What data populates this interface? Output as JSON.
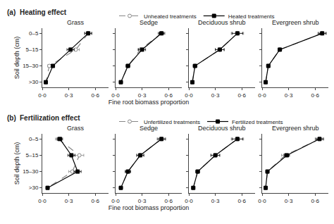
{
  "chart_data": [
    {
      "type": "line",
      "title": "Grass",
      "orientation": "horizontal",
      "annotations": [
        "(a)",
        "Heating effect"
      ],
      "ylabel": "Soil depth (cm)",
      "categories": [
        "0–5",
        "5–15",
        "15–30",
        ">30"
      ],
      "series": [
        {
          "name": "Unheated treatments",
          "color": "#888888",
          "marker": "circle-open",
          "line_style": "dash",
          "values": [
            0.52,
            0.38,
            0.08,
            0.04
          ],
          "errors": [
            0.04,
            0.04,
            0.02,
            0.01
          ]
        },
        {
          "name": "Heated treatments",
          "color": "#000000",
          "marker": "square",
          "line_style": "solid",
          "values": [
            0.52,
            0.32,
            0.12,
            0.04
          ],
          "errors": [
            0.04,
            0.04,
            0.02,
            0.01
          ]
        }
      ],
      "xlim": [
        0.0,
        0.75
      ],
      "xticks": [
        {
          "value": 0.0,
          "label": "0·0"
        },
        {
          "value": 0.3,
          "label": "0·3"
        },
        {
          "value": 0.6,
          "label": "0·6"
        }
      ],
      "grid": false
    },
    {
      "type": "line",
      "title": "Sedge",
      "orientation": "horizontal",
      "xlabel": "Fine root biomass proportion",
      "legend": "top",
      "tick_labels": "x",
      "categories": [
        "0–5",
        "5–15",
        "15–30",
        ">30"
      ],
      "series": [
        {
          "name": "Unheated treatments",
          "color": "#888888",
          "marker": "circle-open",
          "line_style": "dash",
          "values": [
            0.52,
            0.28,
            0.14,
            0.06
          ],
          "errors": [
            0.04,
            0.03,
            0.02,
            0.01
          ]
        },
        {
          "name": "Heated treatments",
          "color": "#000000",
          "marker": "square",
          "line_style": "solid",
          "values": [
            0.52,
            0.3,
            0.14,
            0.06
          ],
          "errors": [
            0.03,
            0.04,
            0.02,
            0.01
          ]
        }
      ],
      "xlim": [
        0.0,
        0.75
      ],
      "xticks": [
        {
          "value": 0.0,
          "label": "0·0"
        },
        {
          "value": 0.3,
          "label": "0·3"
        },
        {
          "value": 0.6,
          "label": "0·6"
        }
      ],
      "grid": false
    },
    {
      "type": "line",
      "title": "Deciduous shrub",
      "orientation": "horizontal",
      "tick_labels": "x",
      "categories": [
        "0–5",
        "5–15",
        "15–30",
        ">30"
      ],
      "series": [
        {
          "name": "Unheated treatments",
          "color": "#888888",
          "marker": "circle-open",
          "line_style": "dash",
          "values": [
            0.55,
            0.35,
            0.07,
            0.04
          ],
          "errors": [
            0.07,
            0.05,
            0.02,
            0.01
          ]
        },
        {
          "name": "Heated treatments",
          "color": "#000000",
          "marker": "square",
          "line_style": "solid",
          "values": [
            0.55,
            0.35,
            0.07,
            0.04
          ],
          "errors": [
            0.06,
            0.05,
            0.02,
            0.01
          ]
        }
      ],
      "xlim": [
        0.0,
        0.75
      ],
      "xticks": [
        {
          "value": 0.0,
          "label": "0·0"
        },
        {
          "value": 0.3,
          "label": "0·3"
        },
        {
          "value": 0.6,
          "label": "0·6"
        }
      ],
      "grid": false
    },
    {
      "type": "line",
      "title": "Evergreen shrub",
      "orientation": "horizontal",
      "tick_labels": "x",
      "categories": [
        "0–5",
        "5–15",
        "15–30",
        ">30"
      ],
      "series": [
        {
          "name": "Unheated treatments",
          "color": "#888888",
          "marker": "circle-open",
          "line_style": "dash",
          "values": [
            0.68,
            0.2,
            0.07,
            0.04
          ],
          "errors": [
            0.05,
            0.02,
            0.01,
            0.01
          ]
        },
        {
          "name": "Heated treatments",
          "color": "#000000",
          "marker": "square",
          "line_style": "solid",
          "values": [
            0.68,
            0.2,
            0.07,
            0.04
          ],
          "errors": [
            0.04,
            0.02,
            0.01,
            0.01
          ]
        }
      ],
      "xlim": [
        0.0,
        0.75
      ],
      "xticks": [
        {
          "value": 0.0,
          "label": "0·0"
        },
        {
          "value": 0.3,
          "label": "0·3"
        },
        {
          "value": 0.6,
          "label": "0·6"
        }
      ],
      "grid": false
    },
    {
      "type": "line",
      "title": "Grass",
      "orientation": "horizontal",
      "annotations": [
        "(b)",
        "Fertilization effect"
      ],
      "ylabel": "Soil depth (cm)",
      "categories": [
        "0–5",
        "5–15",
        "15–30",
        ">30"
      ],
      "series": [
        {
          "name": "Unfertilized treatments",
          "color": "#888888",
          "marker": "circle-open",
          "line_style": "dash",
          "values": [
            0.18,
            0.42,
            0.34,
            0.06
          ],
          "errors": [
            0.03,
            0.05,
            0.04,
            0.01
          ]
        },
        {
          "name": "Fertilized treatments",
          "color": "#000000",
          "marker": "square",
          "line_style": "solid",
          "values": [
            0.2,
            0.33,
            0.4,
            0.06
          ],
          "errors": [
            0.03,
            0.04,
            0.04,
            0.01
          ]
        }
      ],
      "xlim": [
        0.0,
        0.75
      ],
      "xticks": [
        {
          "value": 0.0,
          "label": "0·0"
        },
        {
          "value": 0.3,
          "label": "0·3"
        },
        {
          "value": 0.6,
          "label": "0·6"
        }
      ],
      "grid": false
    },
    {
      "type": "line",
      "title": "Sedge",
      "orientation": "horizontal",
      "xlabel": "Fine root biomass proportion",
      "legend": "top",
      "tick_labels": "x",
      "categories": [
        "0–5",
        "5–15",
        "15–30",
        ">30"
      ],
      "series": [
        {
          "name": "Unfertilized treatments",
          "color": "#888888",
          "marker": "circle-open",
          "line_style": "dash",
          "values": [
            0.52,
            0.28,
            0.14,
            0.06
          ],
          "errors": [
            0.05,
            0.04,
            0.03,
            0.01
          ]
        },
        {
          "name": "Fertilized treatments",
          "color": "#000000",
          "marker": "square",
          "line_style": "solid",
          "values": [
            0.52,
            0.28,
            0.14,
            0.06
          ],
          "errors": [
            0.04,
            0.04,
            0.03,
            0.01
          ]
        }
      ],
      "xlim": [
        0.0,
        0.75
      ],
      "xticks": [
        {
          "value": 0.0,
          "label": "0·0"
        },
        {
          "value": 0.3,
          "label": "0·3"
        },
        {
          "value": 0.6,
          "label": "0·6"
        }
      ],
      "grid": false
    },
    {
      "type": "line",
      "title": "Deciduous shrub",
      "orientation": "horizontal",
      "tick_labels": "x",
      "categories": [
        "0–5",
        "5–15",
        "15–30",
        ">30"
      ],
      "series": [
        {
          "name": "Unfertilized treatments",
          "color": "#888888",
          "marker": "circle-open",
          "line_style": "dash",
          "values": [
            0.55,
            0.3,
            0.1,
            0.05
          ],
          "errors": [
            0.07,
            0.05,
            0.02,
            0.01
          ]
        },
        {
          "name": "Fertilized treatments",
          "color": "#000000",
          "marker": "square",
          "line_style": "solid",
          "values": [
            0.55,
            0.3,
            0.1,
            0.05
          ],
          "errors": [
            0.06,
            0.05,
            0.02,
            0.01
          ]
        }
      ],
      "xlim": [
        0.0,
        0.75
      ],
      "xticks": [
        {
          "value": 0.0,
          "label": "0·0"
        },
        {
          "value": 0.3,
          "label": "0·3"
        },
        {
          "value": 0.6,
          "label": "0·6"
        }
      ],
      "grid": false
    },
    {
      "type": "line",
      "title": "Evergreen shrub",
      "orientation": "horizontal",
      "tick_labels": "x",
      "categories": [
        "0–5",
        "5–15",
        "15–30",
        ">30"
      ],
      "series": [
        {
          "name": "Unfertilized treatments",
          "color": "#888888",
          "marker": "circle-open",
          "line_style": "dash",
          "values": [
            0.65,
            0.26,
            0.06,
            0.04
          ],
          "errors": [
            0.05,
            0.04,
            0.01,
            0.01
          ]
        },
        {
          "name": "Fertilized treatments",
          "color": "#000000",
          "marker": "square",
          "line_style": "solid",
          "values": [
            0.65,
            0.28,
            0.06,
            0.04
          ],
          "errors": [
            0.04,
            0.03,
            0.01,
            0.01
          ]
        }
      ],
      "xlim": [
        0.0,
        0.75
      ],
      "xticks": [
        {
          "value": 0.0,
          "label": "0·0"
        },
        {
          "value": 0.3,
          "label": "0·3"
        },
        {
          "value": 0.6,
          "label": "0·6"
        }
      ],
      "grid": false
    }
  ]
}
